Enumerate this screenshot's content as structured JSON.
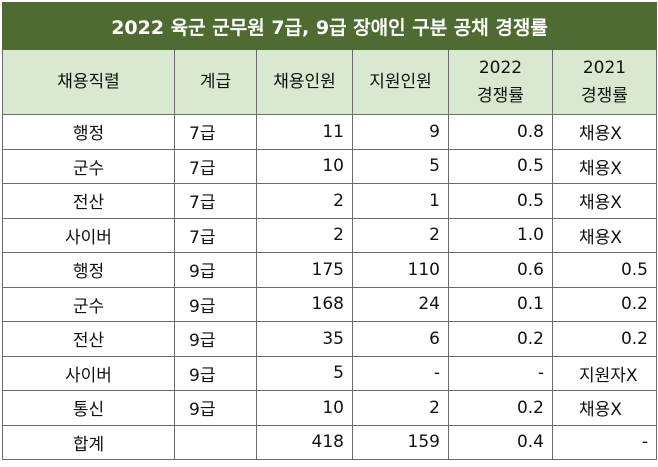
{
  "title": "2022 육군 군무원 7급, 9급 장애인 구분 공채 경쟁률",
  "headers": {
    "job": "채용직렬",
    "grade": "계급",
    "hired": "채용인원",
    "applied": "지원인원",
    "rate2022_line1": "2022",
    "rate2022_line2": "경쟁률",
    "rate2021_line1": "2021",
    "rate2021_line2": "경쟁률"
  },
  "rows": [
    {
      "job": "행정",
      "grade": "7급",
      "hired": "11",
      "applied": "9",
      "r2022": "0.8",
      "r2021": "채용X"
    },
    {
      "job": "군수",
      "grade": "7급",
      "hired": "10",
      "applied": "5",
      "r2022": "0.5",
      "r2021": "채용X"
    },
    {
      "job": "전산",
      "grade": "7급",
      "hired": "2",
      "applied": "1",
      "r2022": "0.5",
      "r2021": "채용X"
    },
    {
      "job": "사이버",
      "grade": "7급",
      "hired": "2",
      "applied": "2",
      "r2022": "1.0",
      "r2021": "채용X"
    },
    {
      "job": "행정",
      "grade": "9급",
      "hired": "175",
      "applied": "110",
      "r2022": "0.6",
      "r2021": "0.5"
    },
    {
      "job": "군수",
      "grade": "9급",
      "hired": "168",
      "applied": "24",
      "r2022": "0.1",
      "r2021": "0.2"
    },
    {
      "job": "전산",
      "grade": "9급",
      "hired": "35",
      "applied": "6",
      "r2022": "0.2",
      "r2021": "0.2"
    },
    {
      "job": "사이버",
      "grade": "9급",
      "hired": "5",
      "applied": "-",
      "r2022": "-",
      "r2021": "지원자X"
    },
    {
      "job": "통신",
      "grade": "9급",
      "hired": "10",
      "applied": "2",
      "r2022": "0.2",
      "r2021": "채용X"
    },
    {
      "job": "합계",
      "grade": "",
      "hired": "418",
      "applied": "159",
      "r2022": "0.4",
      "r2021": "-"
    }
  ]
}
